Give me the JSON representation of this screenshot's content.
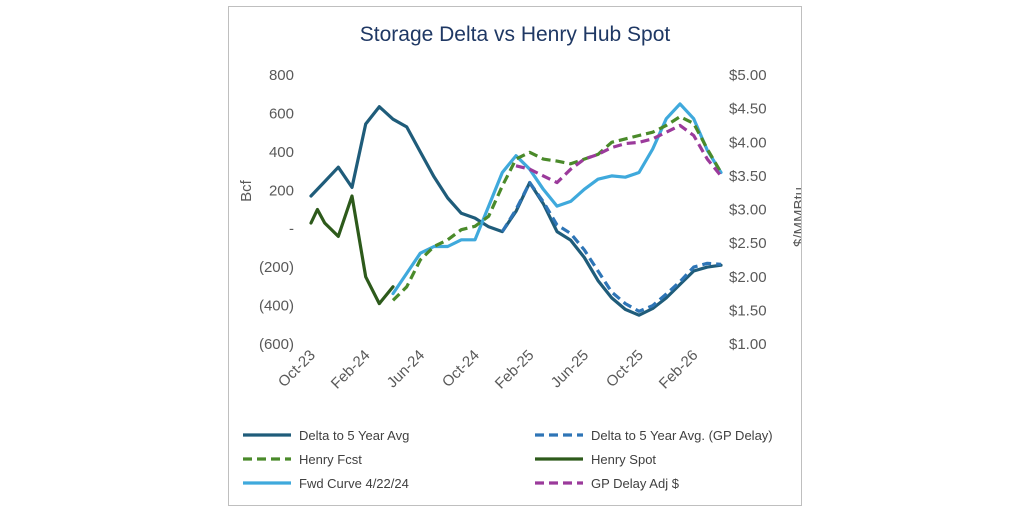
{
  "chart_data": {
    "type": "line",
    "title": "Storage Delta vs Henry Hub Spot",
    "ylabel": "Bcf",
    "y2label": "$/MMBtu",
    "ylim": [
      -600,
      800
    ],
    "y2lim": [
      1.0,
      5.0
    ],
    "xlim": [
      "2023-10",
      "2026-04"
    ],
    "y_ticks": [
      {
        "value": 800,
        "label": "800"
      },
      {
        "value": 600,
        "label": "600"
      },
      {
        "value": 400,
        "label": "400"
      },
      {
        "value": 200,
        "label": "200"
      },
      {
        "value": 0,
        "label": "-"
      },
      {
        "value": -200,
        "label": "(200)"
      },
      {
        "value": -400,
        "label": "(400)"
      },
      {
        "value": -600,
        "label": "(600)"
      }
    ],
    "y2_ticks": [
      {
        "value": 5.0,
        "label": "$5.00"
      },
      {
        "value": 4.5,
        "label": "$4.50"
      },
      {
        "value": 4.0,
        "label": "$4.00"
      },
      {
        "value": 3.5,
        "label": "$3.50"
      },
      {
        "value": 3.0,
        "label": "$3.00"
      },
      {
        "value": 2.5,
        "label": "$2.50"
      },
      {
        "value": 2.0,
        "label": "$2.00"
      },
      {
        "value": 1.5,
        "label": "$1.50"
      },
      {
        "value": 1.0,
        "label": "$1.00"
      }
    ],
    "x_ticks": [
      {
        "value": "2023-10",
        "label": "Oct-23"
      },
      {
        "value": "2024-02",
        "label": "Feb-24"
      },
      {
        "value": "2024-06",
        "label": "Jun-24"
      },
      {
        "value": "2024-10",
        "label": "Oct-24"
      },
      {
        "value": "2025-02",
        "label": "Feb-25"
      },
      {
        "value": "2025-06",
        "label": "Jun-25"
      },
      {
        "value": "2025-10",
        "label": "Oct-25"
      },
      {
        "value": "2026-02",
        "label": "Feb-26"
      }
    ],
    "grid": false,
    "legend_position": "bottom",
    "series": [
      {
        "name": "Delta to 5 Year Avg",
        "axis": "left",
        "color": "#1f5c7a",
        "dash": "solid",
        "points": [
          [
            "2023-10",
            170
          ],
          [
            "2023-11",
            245
          ],
          [
            "2023-12",
            320
          ],
          [
            "2024-01",
            215
          ],
          [
            "2024-02",
            545
          ],
          [
            "2024-03",
            635
          ],
          [
            "2024-04",
            570
          ],
          [
            "2024-05",
            530
          ],
          [
            "2024-06",
            400
          ],
          [
            "2024-07",
            270
          ],
          [
            "2024-08",
            160
          ],
          [
            "2024-09",
            80
          ],
          [
            "2024-10",
            55
          ],
          [
            "2024-11",
            10
          ],
          [
            "2024-12",
            -15
          ],
          [
            "2025-01",
            90
          ],
          [
            "2025-02",
            240
          ],
          [
            "2025-03",
            130
          ],
          [
            "2025-04",
            -15
          ],
          [
            "2025-05",
            -60
          ],
          [
            "2025-06",
            -150
          ],
          [
            "2025-07",
            -270
          ],
          [
            "2025-08",
            -360
          ],
          [
            "2025-09",
            -420
          ],
          [
            "2025-10",
            -450
          ],
          [
            "2025-11",
            -415
          ],
          [
            "2025-12",
            -360
          ],
          [
            "2026-01",
            -290
          ],
          [
            "2026-02",
            -220
          ],
          [
            "2026-03",
            -200
          ],
          [
            "2026-04",
            -190
          ]
        ]
      },
      {
        "name": "Delta to 5 Year Avg. (GP Delay)",
        "axis": "left",
        "color": "#2e75b6",
        "dash": "dashed",
        "points": [
          [
            "2024-12",
            -15
          ],
          [
            "2025-01",
            100
          ],
          [
            "2025-02",
            240
          ],
          [
            "2025-03",
            140
          ],
          [
            "2025-04",
            20
          ],
          [
            "2025-05",
            -25
          ],
          [
            "2025-06",
            -110
          ],
          [
            "2025-07",
            -220
          ],
          [
            "2025-08",
            -330
          ],
          [
            "2025-09",
            -390
          ],
          [
            "2025-10",
            -430
          ],
          [
            "2025-11",
            -400
          ],
          [
            "2025-12",
            -340
          ],
          [
            "2026-01",
            -275
          ],
          [
            "2026-02",
            -200
          ],
          [
            "2026-03",
            -180
          ],
          [
            "2026-04",
            -185
          ]
        ]
      },
      {
        "name": "Henry Fcst",
        "axis": "right",
        "color": "#4a8a2a",
        "dash": "dashed",
        "points": [
          [
            "2024-04",
            1.65
          ],
          [
            "2024-05",
            1.85
          ],
          [
            "2024-06",
            2.25
          ],
          [
            "2024-07",
            2.45
          ],
          [
            "2024-08",
            2.55
          ],
          [
            "2024-09",
            2.7
          ],
          [
            "2024-10",
            2.75
          ],
          [
            "2024-11",
            2.9
          ],
          [
            "2024-12",
            3.35
          ],
          [
            "2025-01",
            3.75
          ],
          [
            "2025-02",
            3.85
          ],
          [
            "2025-03",
            3.75
          ],
          [
            "2025-04",
            3.72
          ],
          [
            "2025-05",
            3.68
          ],
          [
            "2025-06",
            3.75
          ],
          [
            "2025-07",
            3.82
          ],
          [
            "2025-08",
            4.0
          ],
          [
            "2025-09",
            4.05
          ],
          [
            "2025-10",
            4.1
          ],
          [
            "2025-11",
            4.15
          ],
          [
            "2025-12",
            4.25
          ],
          [
            "2026-01",
            4.38
          ],
          [
            "2026-02",
            4.28
          ],
          [
            "2026-03",
            3.9
          ],
          [
            "2026-04",
            3.55
          ]
        ]
      },
      {
        "name": "Henry Spot",
        "axis": "right",
        "color": "#2d5a1b",
        "dash": "solid",
        "points": [
          [
            "2023-10",
            2.8
          ],
          [
            "2023-10-15",
            3.0
          ],
          [
            "2023-11",
            2.8
          ],
          [
            "2023-12",
            2.6
          ],
          [
            "2024-01",
            3.2
          ],
          [
            "2024-02",
            2.0
          ],
          [
            "2024-03",
            1.6
          ],
          [
            "2024-04",
            1.85
          ]
        ]
      },
      {
        "name": "Fwd Curve 4/22/24",
        "axis": "right",
        "color": "#3fa9dc",
        "dash": "solid",
        "points": [
          [
            "2024-04",
            1.75
          ],
          [
            "2024-05",
            2.05
          ],
          [
            "2024-06",
            2.35
          ],
          [
            "2024-07",
            2.45
          ],
          [
            "2024-08",
            2.45
          ],
          [
            "2024-09",
            2.55
          ],
          [
            "2024-10",
            2.55
          ],
          [
            "2024-11",
            3.05
          ],
          [
            "2024-12",
            3.55
          ],
          [
            "2025-01",
            3.8
          ],
          [
            "2025-02",
            3.6
          ],
          [
            "2025-03",
            3.3
          ],
          [
            "2025-04",
            3.05
          ],
          [
            "2025-05",
            3.12
          ],
          [
            "2025-06",
            3.3
          ],
          [
            "2025-07",
            3.45
          ],
          [
            "2025-08",
            3.5
          ],
          [
            "2025-09",
            3.48
          ],
          [
            "2025-10",
            3.55
          ],
          [
            "2025-11",
            3.9
          ],
          [
            "2025-12",
            4.35
          ],
          [
            "2026-01",
            4.57
          ],
          [
            "2026-02",
            4.35
          ],
          [
            "2026-03",
            3.88
          ],
          [
            "2026-04",
            3.55
          ]
        ]
      },
      {
        "name": "GP Delay Adj $",
        "axis": "right",
        "color": "#9b3a9b",
        "dash": "dashed",
        "points": [
          [
            "2025-01",
            3.65
          ],
          [
            "2025-02",
            3.6
          ],
          [
            "2025-03",
            3.5
          ],
          [
            "2025-04",
            3.4
          ],
          [
            "2025-05",
            3.6
          ],
          [
            "2025-06",
            3.75
          ],
          [
            "2025-07",
            3.82
          ],
          [
            "2025-08",
            3.92
          ],
          [
            "2025-09",
            3.98
          ],
          [
            "2025-10",
            4.0
          ],
          [
            "2025-11",
            4.05
          ],
          [
            "2025-12",
            4.15
          ],
          [
            "2026-01",
            4.25
          ],
          [
            "2026-02",
            4.1
          ],
          [
            "2026-03",
            3.75
          ],
          [
            "2026-04",
            3.5
          ]
        ]
      }
    ]
  }
}
